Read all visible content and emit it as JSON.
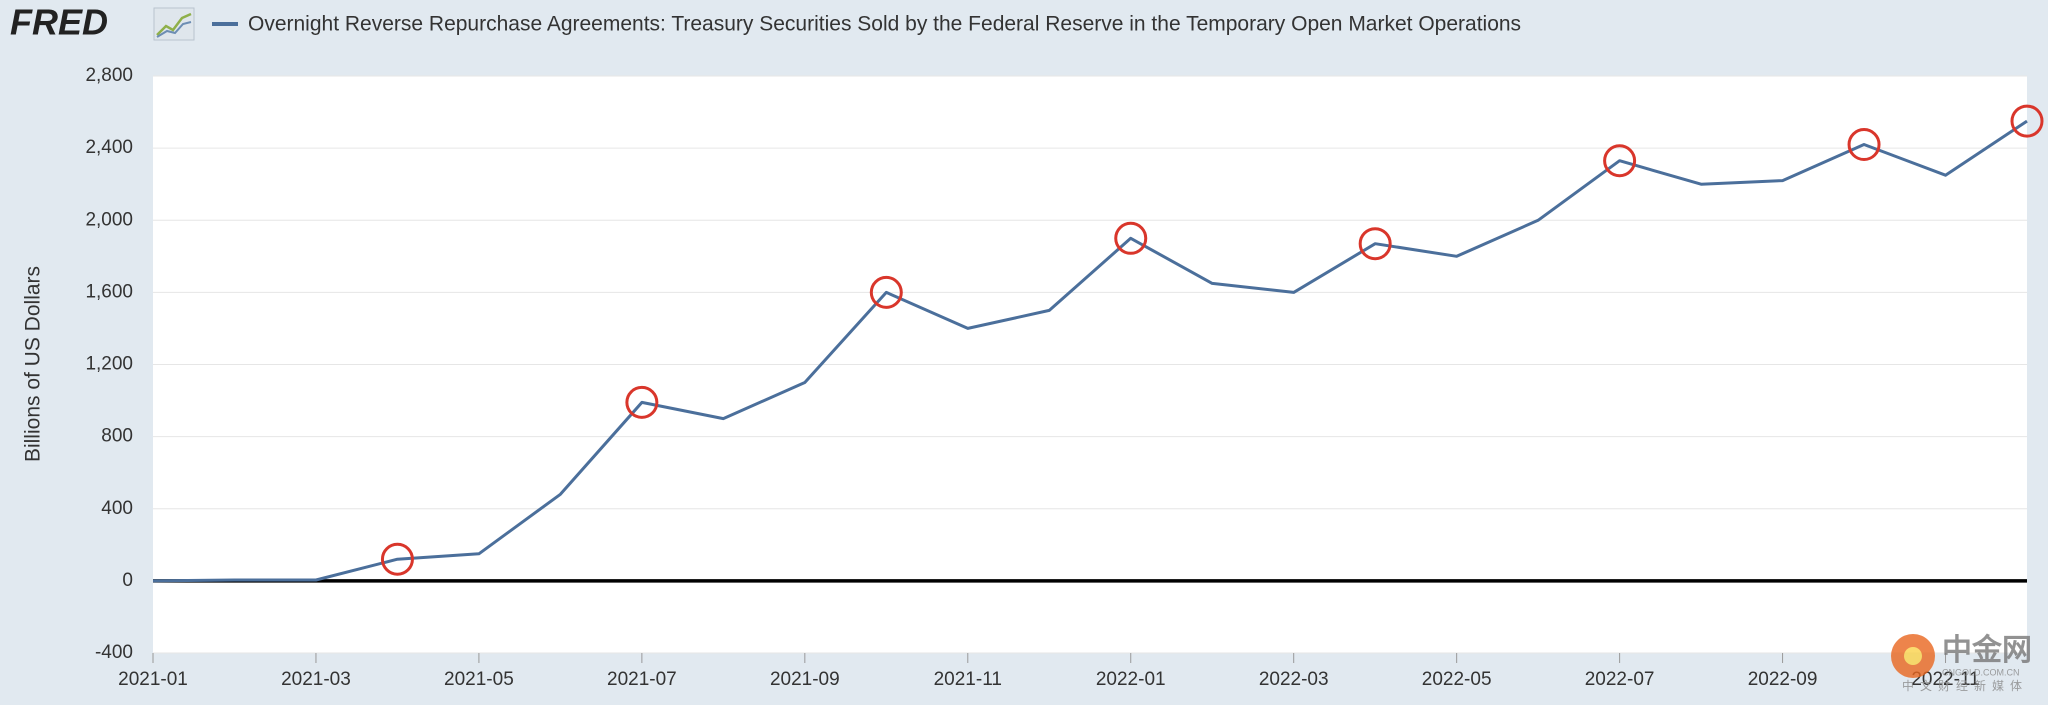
{
  "chart_data": {
    "type": "line",
    "brand": "FRED",
    "title": "Overnight Reverse Repurchase Agreements: Treasury Securities Sold by the Federal Reserve in the Temporary Open Market Operations",
    "y_label": "Billions of US Dollars",
    "x": [
      "2021-01",
      "2021-02",
      "2021-03",
      "2021-04",
      "2021-05",
      "2021-06",
      "2021-07",
      "2021-08",
      "2021-09",
      "2021-10",
      "2021-11",
      "2021-12",
      "2022-01",
      "2022-02",
      "2022-03",
      "2022-04",
      "2022-05",
      "2022-06",
      "2022-07",
      "2022-08",
      "2022-09",
      "2022-10",
      "2022-11",
      "2022-12"
    ],
    "series": [
      {
        "name": "Overnight Reverse Repurchase Agreements: Treasury Securities Sold by the Federal Reserve in the Temporary Open Market Operations",
        "color": "#4b6f9b",
        "values": [
          0,
          5,
          5,
          120,
          150,
          480,
          990,
          900,
          1100,
          1600,
          1400,
          1500,
          1900,
          1650,
          1600,
          1870,
          1800,
          2000,
          2330,
          2200,
          2220,
          2420,
          2250,
          2550
        ]
      }
    ],
    "highlight_points": [
      3,
      6,
      9,
      12,
      15,
      18,
      21,
      23
    ],
    "highlight_color": "#d9362b",
    "xlim": [
      "2021-01",
      "2022-12"
    ],
    "xticks": [
      "2021-01",
      "2021-03",
      "2021-05",
      "2021-07",
      "2021-09",
      "2021-11",
      "2022-01",
      "2022-03",
      "2022-05",
      "2022-07",
      "2022-09",
      "2022-11"
    ],
    "ylim": [
      -400,
      2800
    ],
    "yticks": [
      -400,
      0,
      400,
      800,
      {
        "value": 1200,
        "label": "1,200"
      },
      {
        "value": 1600,
        "label": "1,600"
      },
      {
        "value": 2000,
        "label": "2,000"
      },
      {
        "value": 2400,
        "label": "2,400"
      },
      {
        "value": 2800,
        "label": "2,800"
      }
    ],
    "grid": true,
    "zero_line": true,
    "watermark": {
      "name": "中金网",
      "site": "CNGOLD.COM.CN",
      "tagline": "中文财经新媒体"
    }
  }
}
